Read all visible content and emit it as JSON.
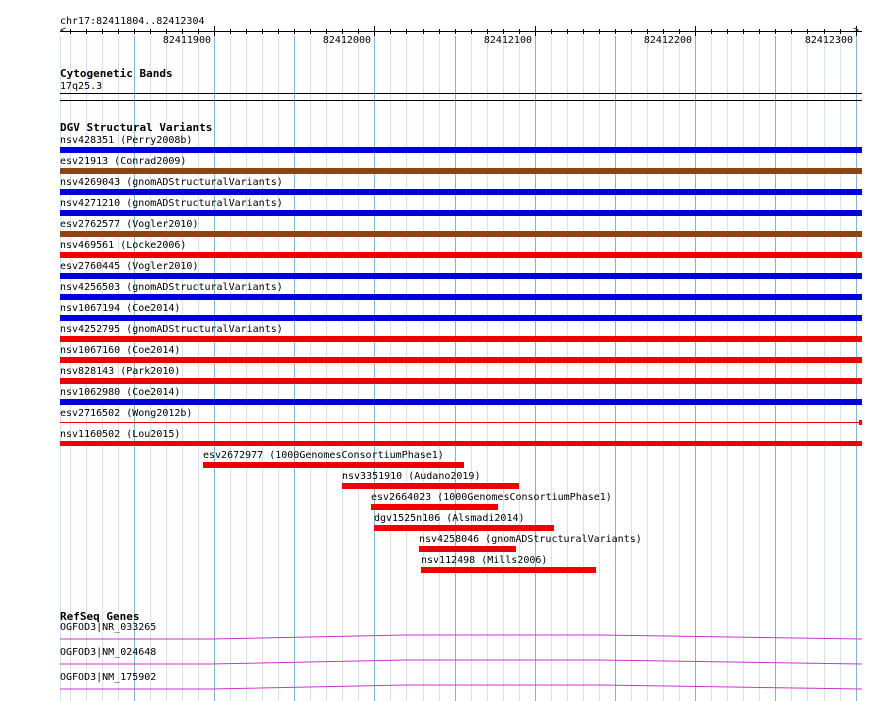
{
  "ruler": {
    "range_label": "chr17:82411804..82412304",
    "start": 82411804,
    "end": 82412304,
    "ticks": [
      "82411900",
      "82412000",
      "82412100",
      "82412200",
      "82412300"
    ]
  },
  "cytoband": {
    "title": "Cytogenetic Bands",
    "band": "17q25.3"
  },
  "dgv": {
    "title": "DGV Structural Variants",
    "colors": {
      "gain": "#0000dd",
      "loss": "#ee0000",
      "gain_loss": "#8b4513"
    },
    "full_features": [
      {
        "label": "nsv428351 (Perry2008b)",
        "color": "#0000dd"
      },
      {
        "label": "esv21913 (Conrad2009)",
        "color": "#8b4513"
      },
      {
        "label": "nsv4269043 (gnomADStructuralVariants)",
        "color": "#0000dd"
      },
      {
        "label": "nsv4271210 (gnomADStructuralVariants)",
        "color": "#0000dd"
      },
      {
        "label": "esv2762577 (Vogler2010)",
        "color": "#8b4513"
      },
      {
        "label": "nsv469561 (Locke2006)",
        "color": "#ee0000"
      },
      {
        "label": "esv2760445 (Vogler2010)",
        "color": "#0000dd"
      },
      {
        "label": "nsv4256503 (gnomADStructuralVariants)",
        "color": "#0000dd"
      },
      {
        "label": "nsv1067194 (Coe2014)",
        "color": "#0000dd"
      },
      {
        "label": "nsv4252795 (gnomADStructuralVariants)",
        "color": "#ee0000"
      },
      {
        "label": "nsv1067160 (Coe2014)",
        "color": "#ee0000"
      },
      {
        "label": "nsv828143 (Park2010)",
        "color": "#ee0000"
      },
      {
        "label": "nsv1062980 (Coe2014)",
        "color": "#0000dd"
      }
    ],
    "thin_features": [
      {
        "label": "esv2716502 (Wong2012b)",
        "color": "#ee0000",
        "start": 82412304,
        "end": 82412304
      },
      {
        "label": "nsv1160502 (Lou2015)",
        "color": "#ee0000",
        "start": 82411804,
        "end": 82412304
      }
    ],
    "short_features": [
      {
        "label": "esv2672977 (1000GenomesConsortiumPhase1)",
        "color": "#ee0000",
        "start": 82411893,
        "end": 82412056
      },
      {
        "label": "nsv3351910 (Audano2019)",
        "color": "#ee0000",
        "start": 82411980,
        "end": 82412090
      },
      {
        "label": "esv2664023 (1000GenomesConsortiumPhase1)",
        "color": "#ee0000",
        "start": 82411998,
        "end": 82412077
      },
      {
        "label": "dgv1525n106 (Alsmadi2014)",
        "color": "#ee0000",
        "start": 82412000,
        "end": 82412112
      },
      {
        "label": "nsv4258046 (gnomADStructuralVariants)",
        "color": "#ee0000",
        "start": 82412028,
        "end": 82412088
      },
      {
        "label": "nsv112498 (Mills2006)",
        "color": "#ee0000",
        "start": 82412029,
        "end": 82412138
      }
    ]
  },
  "refseq": {
    "title": "RefSeq Genes",
    "color": "#cc33cc",
    "transcripts": [
      {
        "label": "OGFOD3|NR_033265"
      },
      {
        "label": "OGFOD3|NM_024648"
      },
      {
        "label": "OGFOD3|NM_175902"
      }
    ]
  }
}
